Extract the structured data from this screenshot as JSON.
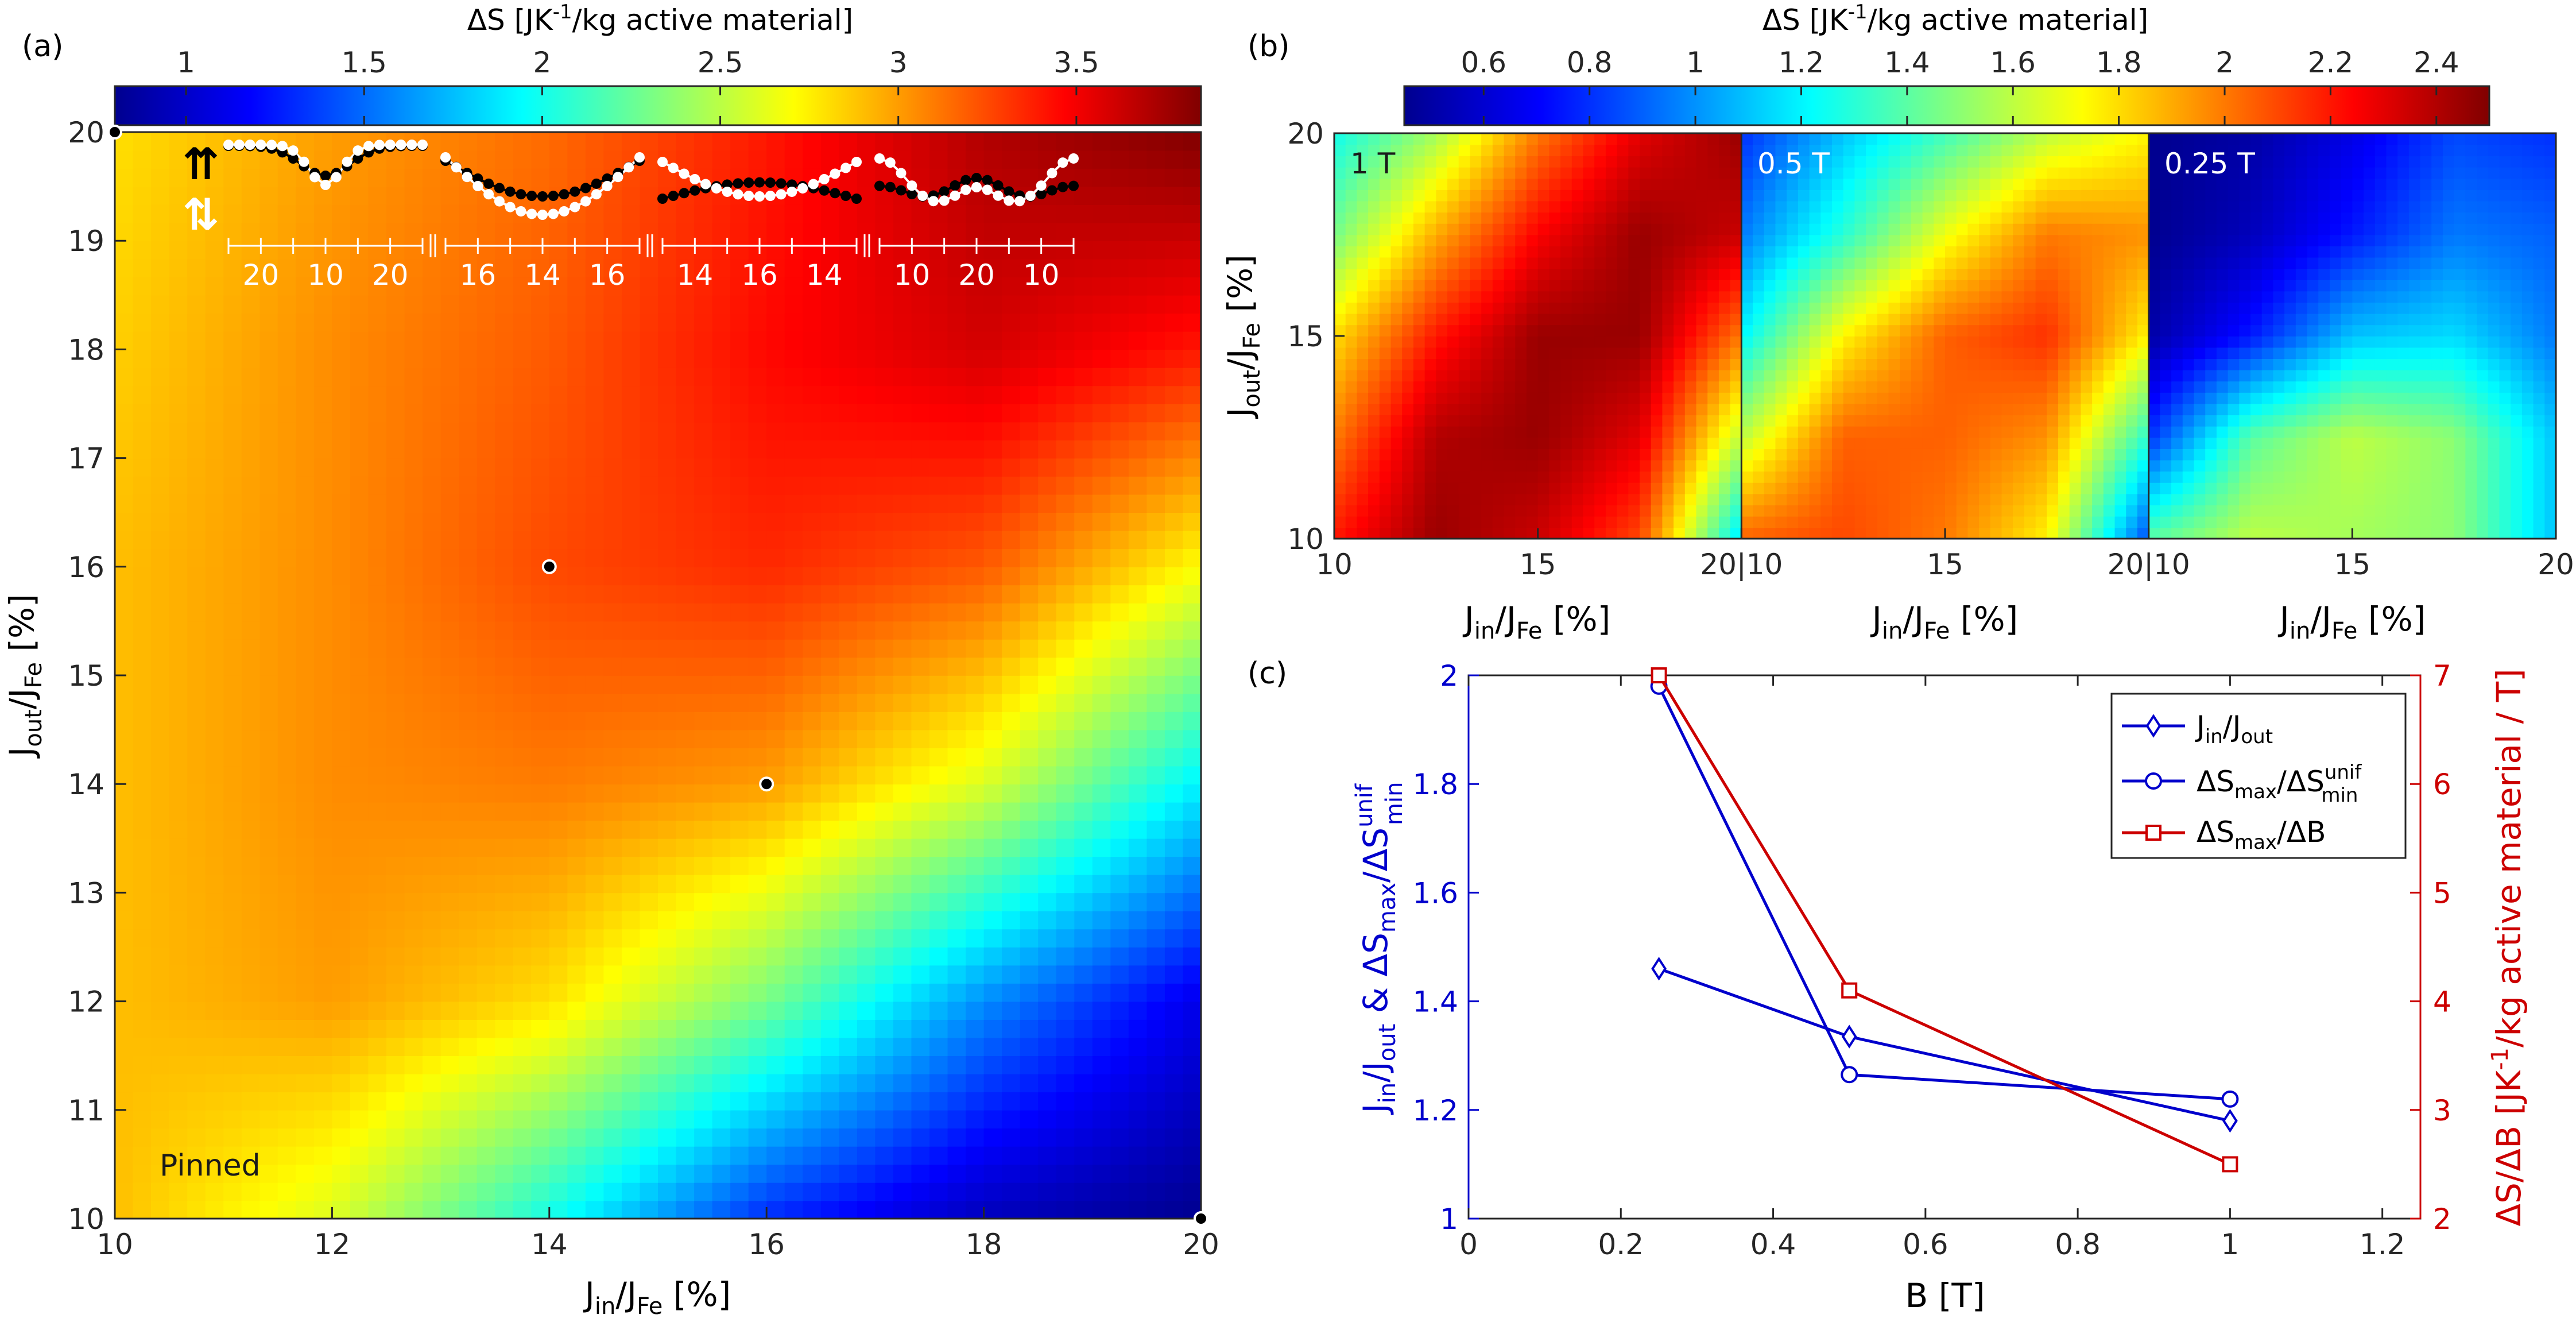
{
  "panel_labels": {
    "a": "(a)",
    "b": "(b)",
    "c": "(c)"
  },
  "panel_a": {
    "colorbar_label_main": "ΔS [JK",
    "colorbar_label_sup": "-1",
    "colorbar_label_rest": "/kg active material]",
    "colorbar_ticks": [
      "1",
      "1.5",
      "2",
      "2.5",
      "3",
      "3.5"
    ],
    "xlabel_main": "J",
    "xlabel_sub": "in",
    "xlabel_mid": "/J",
    "xlabel_sub2": "Fe",
    "xlabel_unit": " [%]",
    "ylabel_main": "J",
    "ylabel_sub": "out",
    "ylabel_mid": "/J",
    "ylabel_sub2": "Fe",
    "ylabel_unit": " [%]",
    "x_ticks": [
      "10",
      "12",
      "14",
      "16",
      "18",
      "20"
    ],
    "y_ticks": [
      "10",
      "11",
      "12",
      "13",
      "14",
      "15",
      "16",
      "17",
      "18",
      "19",
      "20"
    ],
    "pinned_label": "Pinned",
    "spin_up": "⇈",
    "spin_anti": "⇅",
    "inset_groups": [
      {
        "labels": [
          "20",
          "10",
          "20"
        ]
      },
      {
        "labels": [
          "16",
          "14",
          "16"
        ]
      },
      {
        "labels": [
          "14",
          "16",
          "14"
        ]
      },
      {
        "labels": [
          "10",
          "20",
          "10"
        ]
      }
    ]
  },
  "panel_b": {
    "colorbar_label_main": "ΔS [JK",
    "colorbar_label_sup": "-1",
    "colorbar_label_rest": "/kg active material]",
    "colorbar_ticks": [
      "0.6",
      "0.8",
      "1",
      "1.2",
      "1.4",
      "1.6",
      "1.8",
      "2",
      "2.2",
      "2.4"
    ],
    "subpanels": [
      {
        "field_label": "1 T"
      },
      {
        "field_label": "0.5 T"
      },
      {
        "field_label": "0.25 T"
      }
    ],
    "x_ticks": [
      "10",
      "15",
      "20|10",
      "15",
      "20|10",
      "15",
      "20"
    ],
    "y_ticks": [
      "10",
      "15",
      "20"
    ],
    "xlabel_main": "J",
    "xlabel_sub": "in",
    "xlabel_mid": "/J",
    "xlabel_sub2": "Fe",
    "xlabel_unit": " [%]",
    "ylabel_main": "J",
    "ylabel_sub": "out",
    "ylabel_mid": "/J",
    "ylabel_sub2": "Fe",
    "ylabel_unit": " [%]"
  },
  "chart_data": [
    {
      "type": "heatmap",
      "panel": "(a)",
      "title": "",
      "xlabel": "Jin/JFe [%]",
      "ylabel": "Jout/JFe [%]",
      "xlim": [
        10,
        20
      ],
      "ylim": [
        10,
        20
      ],
      "clim": [
        0.8,
        3.85
      ],
      "colormap": "jet",
      "grid_x": [
        10,
        12,
        14,
        16,
        18,
        20
      ],
      "grid_y": [
        10,
        12,
        14,
        16,
        18,
        20
      ],
      "z": [
        [
          2.9,
          2.6,
          2.0,
          1.3,
          0.95,
          0.8
        ],
        [
          2.9,
          3.0,
          2.8,
          2.3,
          1.6,
          1.1
        ],
        [
          2.9,
          3.05,
          3.1,
          3.0,
          2.6,
          1.9
        ],
        [
          2.9,
          3.05,
          3.25,
          3.35,
          3.2,
          2.7
        ],
        [
          2.85,
          3.05,
          3.2,
          3.45,
          3.6,
          3.4
        ],
        [
          2.8,
          3.0,
          3.15,
          3.4,
          3.7,
          3.85
        ]
      ],
      "markers": [
        {
          "x": 10,
          "y": 20
        },
        {
          "x": 14,
          "y": 16
        },
        {
          "x": 16,
          "y": 14
        },
        {
          "x": 20,
          "y": 10
        }
      ],
      "annotations": [
        "Pinned"
      ]
    },
    {
      "type": "heatmap",
      "panel": "(b)",
      "xlabel": "Jin/JFe [%]",
      "ylabel": "Jout/JFe [%]",
      "xlim": [
        10,
        20
      ],
      "ylim": [
        10,
        20
      ],
      "clim": [
        0.45,
        2.5
      ],
      "colormap": "jet",
      "subplots": [
        {
          "label": "1 T",
          "grid_x": [
            10,
            12.5,
            15,
            17.5,
            20
          ],
          "grid_y": [
            10,
            12.5,
            15,
            17.5,
            20
          ],
          "z": [
            [
              2.2,
              2.45,
              2.35,
              2.1,
              1.15
            ],
            [
              2.0,
              2.4,
              2.45,
              2.3,
              1.6
            ],
            [
              1.8,
              2.2,
              2.45,
              2.45,
              2.0
            ],
            [
              1.45,
              1.9,
              2.25,
              2.45,
              2.35
            ],
            [
              1.25,
              1.55,
              2.0,
              2.3,
              2.45
            ]
          ]
        },
        {
          "label": "0.5 T",
          "grid_x": [
            10,
            12.5,
            15,
            17.5,
            20
          ],
          "grid_y": [
            10,
            12.5,
            15,
            17.5,
            20
          ],
          "z": [
            [
              2.05,
              2.1,
              2.0,
              1.75,
              0.85
            ],
            [
              1.6,
              2.05,
              2.05,
              1.95,
              1.3
            ],
            [
              1.2,
              1.75,
              2.05,
              2.15,
              1.75
            ],
            [
              0.95,
              1.3,
              1.7,
              2.0,
              1.95
            ],
            [
              0.8,
              1.1,
              1.35,
              1.6,
              1.75
            ]
          ]
        },
        {
          "label": "0.25 T",
          "grid_x": [
            10,
            12.5,
            15,
            17.5,
            20
          ],
          "grid_y": [
            10,
            12.5,
            15,
            17.5,
            20
          ],
          "z": [
            [
              1.4,
              1.6,
              1.55,
              1.5,
              1.1
            ],
            [
              0.8,
              1.4,
              1.6,
              1.5,
              1.1
            ],
            [
              0.5,
              0.75,
              1.1,
              1.15,
              0.95
            ],
            [
              0.45,
              0.55,
              0.75,
              0.95,
              0.9
            ],
            [
              0.45,
              0.5,
              0.65,
              0.85,
              0.8
            ]
          ]
        }
      ]
    },
    {
      "type": "line",
      "panel": "(c)",
      "xlabel": "B [T]",
      "ylabel_left": "Jin/Jout & ΔSmax/ΔS^unif_min",
      "ylabel_right": "ΔS/ΔB [JK-1/kg active material / T]",
      "xlim": [
        0,
        1.25
      ],
      "ylim_left": [
        1,
        2
      ],
      "ylim_right": [
        2,
        7
      ],
      "x_ticks": [
        0,
        0.2,
        0.4,
        0.6,
        0.8,
        1,
        1.2
      ],
      "y_ticks_left": [
        1,
        1.2,
        1.4,
        1.6,
        1.8,
        2
      ],
      "y_ticks_right": [
        2,
        3,
        4,
        5,
        6,
        7
      ],
      "x_tick_labels": [
        "0",
        "0.2",
        "0.4",
        "0.6",
        "0.8",
        "1",
        "1.2"
      ],
      "y_tick_labels_left": [
        "1",
        "1.2",
        "1.4",
        "1.6",
        "1.8",
        "2"
      ],
      "y_tick_labels_right": [
        "2",
        "3",
        "4",
        "5",
        "6",
        "7"
      ],
      "series": [
        {
          "name": "Jin/Jout",
          "axis": "left",
          "marker": "diamond",
          "color": "#0000cc",
          "x": [
            0.25,
            0.5,
            1
          ],
          "y": [
            1.46,
            1.335,
            1.18
          ]
        },
        {
          "name": "ΔSmax/ΔSunif_min",
          "axis": "left",
          "marker": "circle",
          "color": "#0000cc",
          "x": [
            0.25,
            0.5,
            1
          ],
          "y": [
            1.98,
            1.265,
            1.22
          ]
        },
        {
          "name": "ΔSmax/ΔB",
          "axis": "right",
          "marker": "square",
          "color": "#cc0000",
          "x": [
            0.25,
            0.5,
            1
          ],
          "y": [
            7.0,
            4.1,
            2.5
          ]
        }
      ],
      "legend_position": "top-right"
    }
  ],
  "panel_c": {
    "xlabel": "B [T]",
    "legend": [
      {
        "main": "J",
        "sub": "in",
        "mid": "/J",
        "sub2": "out",
        "tail": ""
      },
      {
        "main": "ΔS",
        "sub": "max",
        "mid": "/ΔS",
        "sub2": "min",
        "sup2": "unif"
      },
      {
        "main": "ΔS",
        "sub": "max",
        "mid": "/ΔB",
        "sub2": "",
        "tail": ""
      }
    ],
    "ylabel_left": {
      "a": "J",
      "a_sub": "in",
      "b": "/J",
      "b_sub": "out",
      "c": " & ΔS",
      "c_sub": "max",
      "d": "/ΔS",
      "d_sub": "min",
      "d_sup": "unif"
    },
    "ylabel_right": {
      "a": "ΔS/ΔB [JK",
      "a_sup": "-1",
      "b": "/kg active material / T]"
    },
    "colors": {
      "left_axis": "#0000cc",
      "right_axis": "#cc0000"
    }
  }
}
